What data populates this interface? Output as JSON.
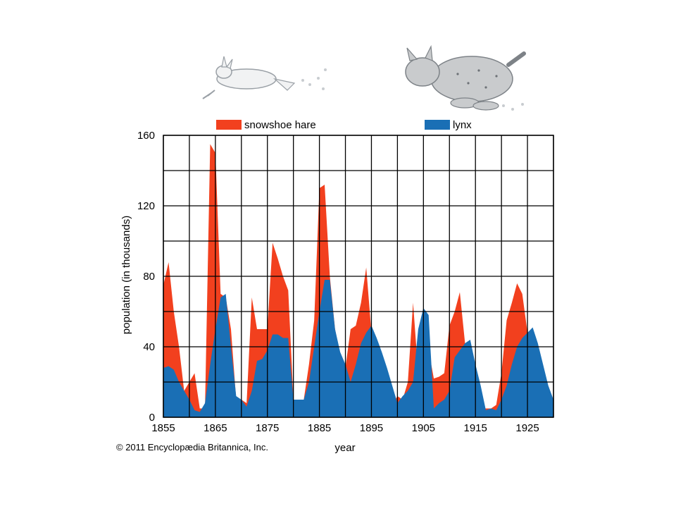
{
  "chart_data": {
    "type": "area",
    "xlabel": "year",
    "ylabel": "population (in thousands)",
    "xlim": [
      1855,
      1930
    ],
    "ylim": [
      0,
      160
    ],
    "x_ticks": [
      1855,
      1865,
      1875,
      1885,
      1895,
      1905,
      1915,
      1925
    ],
    "y_ticks": [
      0,
      40,
      80,
      120,
      160
    ],
    "grid": true,
    "legend_placement": "top",
    "series": [
      {
        "name": "snowshoe hare",
        "color": "#f2401e",
        "points": [
          [
            1855,
            75
          ],
          [
            1856,
            88
          ],
          [
            1857,
            60
          ],
          [
            1858,
            40
          ],
          [
            1859,
            15
          ],
          [
            1860,
            20
          ],
          [
            1861,
            25
          ],
          [
            1862,
            5
          ],
          [
            1863,
            5
          ],
          [
            1864,
            155
          ],
          [
            1865,
            150
          ],
          [
            1866,
            70
          ],
          [
            1867,
            68
          ],
          [
            1868,
            50
          ],
          [
            1869,
            10
          ],
          [
            1870,
            10
          ],
          [
            1871,
            8
          ],
          [
            1872,
            68
          ],
          [
            1873,
            50
          ],
          [
            1874,
            50
          ],
          [
            1875,
            50
          ],
          [
            1876,
            99
          ],
          [
            1877,
            90
          ],
          [
            1878,
            80
          ],
          [
            1879,
            72
          ],
          [
            1880,
            10
          ],
          [
            1881,
            10
          ],
          [
            1882,
            10
          ],
          [
            1883,
            30
          ],
          [
            1884,
            55
          ],
          [
            1885,
            130
          ],
          [
            1886,
            132
          ],
          [
            1887,
            80
          ],
          [
            1888,
            50
          ],
          [
            1889,
            35
          ],
          [
            1890,
            28
          ],
          [
            1891,
            50
          ],
          [
            1892,
            52
          ],
          [
            1893,
            65
          ],
          [
            1894,
            85
          ],
          [
            1895,
            48
          ],
          [
            1896,
            40
          ],
          [
            1897,
            28
          ],
          [
            1898,
            18
          ],
          [
            1899,
            7
          ],
          [
            1900,
            12
          ],
          [
            1901,
            10
          ],
          [
            1902,
            20
          ],
          [
            1903,
            65
          ],
          [
            1904,
            25
          ],
          [
            1905,
            42
          ],
          [
            1906,
            38
          ],
          [
            1907,
            22
          ],
          [
            1908,
            23
          ],
          [
            1909,
            25
          ],
          [
            1910,
            52
          ],
          [
            1911,
            60
          ],
          [
            1912,
            71
          ],
          [
            1913,
            42
          ],
          [
            1914,
            40
          ],
          [
            1915,
            28
          ],
          [
            1916,
            5
          ],
          [
            1917,
            5
          ],
          [
            1918,
            5
          ],
          [
            1919,
            7
          ],
          [
            1920,
            25
          ],
          [
            1921,
            55
          ],
          [
            1922,
            65
          ],
          [
            1923,
            76
          ],
          [
            1924,
            70
          ],
          [
            1925,
            48
          ],
          [
            1926,
            40
          ],
          [
            1927,
            30
          ],
          [
            1928,
            20
          ],
          [
            1929,
            10
          ],
          [
            1930,
            8
          ]
        ]
      },
      {
        "name": "lynx",
        "color": "#1a6fb5",
        "points": [
          [
            1855,
            28
          ],
          [
            1856,
            29
          ],
          [
            1857,
            27
          ],
          [
            1858,
            20
          ],
          [
            1859,
            15
          ],
          [
            1860,
            10
          ],
          [
            1861,
            4
          ],
          [
            1862,
            3
          ],
          [
            1863,
            8
          ],
          [
            1864,
            30
          ],
          [
            1865,
            50
          ],
          [
            1866,
            68
          ],
          [
            1867,
            70
          ],
          [
            1868,
            40
          ],
          [
            1869,
            12
          ],
          [
            1870,
            10
          ],
          [
            1871,
            6
          ],
          [
            1872,
            15
          ],
          [
            1873,
            32
          ],
          [
            1874,
            33
          ],
          [
            1875,
            38
          ],
          [
            1876,
            47
          ],
          [
            1877,
            47
          ],
          [
            1878,
            45
          ],
          [
            1879,
            45
          ],
          [
            1880,
            10
          ],
          [
            1881,
            10
          ],
          [
            1882,
            10
          ],
          [
            1883,
            20
          ],
          [
            1884,
            40
          ],
          [
            1885,
            60
          ],
          [
            1886,
            78
          ],
          [
            1887,
            78
          ],
          [
            1888,
            50
          ],
          [
            1889,
            37
          ],
          [
            1890,
            30
          ],
          [
            1891,
            20
          ],
          [
            1892,
            30
          ],
          [
            1893,
            42
          ],
          [
            1894,
            48
          ],
          [
            1895,
            52
          ],
          [
            1896,
            45
          ],
          [
            1897,
            37
          ],
          [
            1898,
            28
          ],
          [
            1899,
            18
          ],
          [
            1900,
            8
          ],
          [
            1901,
            12
          ],
          [
            1902,
            15
          ],
          [
            1903,
            20
          ],
          [
            1904,
            50
          ],
          [
            1905,
            62
          ],
          [
            1906,
            58
          ],
          [
            1907,
            5
          ],
          [
            1908,
            8
          ],
          [
            1909,
            10
          ],
          [
            1910,
            15
          ],
          [
            1911,
            34
          ],
          [
            1912,
            38
          ],
          [
            1913,
            42
          ],
          [
            1914,
            44
          ],
          [
            1915,
            30
          ],
          [
            1916,
            18
          ],
          [
            1917,
            4
          ],
          [
            1918,
            5
          ],
          [
            1919,
            4
          ],
          [
            1920,
            10
          ],
          [
            1921,
            18
          ],
          [
            1922,
            30
          ],
          [
            1923,
            40
          ],
          [
            1924,
            45
          ],
          [
            1925,
            48
          ],
          [
            1926,
            51
          ],
          [
            1927,
            42
          ],
          [
            1928,
            30
          ],
          [
            1929,
            18
          ],
          [
            1930,
            10
          ]
        ]
      }
    ]
  },
  "credit": "© 2011 Encyclopædia Britannica, Inc.",
  "illustrations": {
    "hare": "snowshoe-hare-illustration",
    "lynx": "lynx-illustration"
  }
}
